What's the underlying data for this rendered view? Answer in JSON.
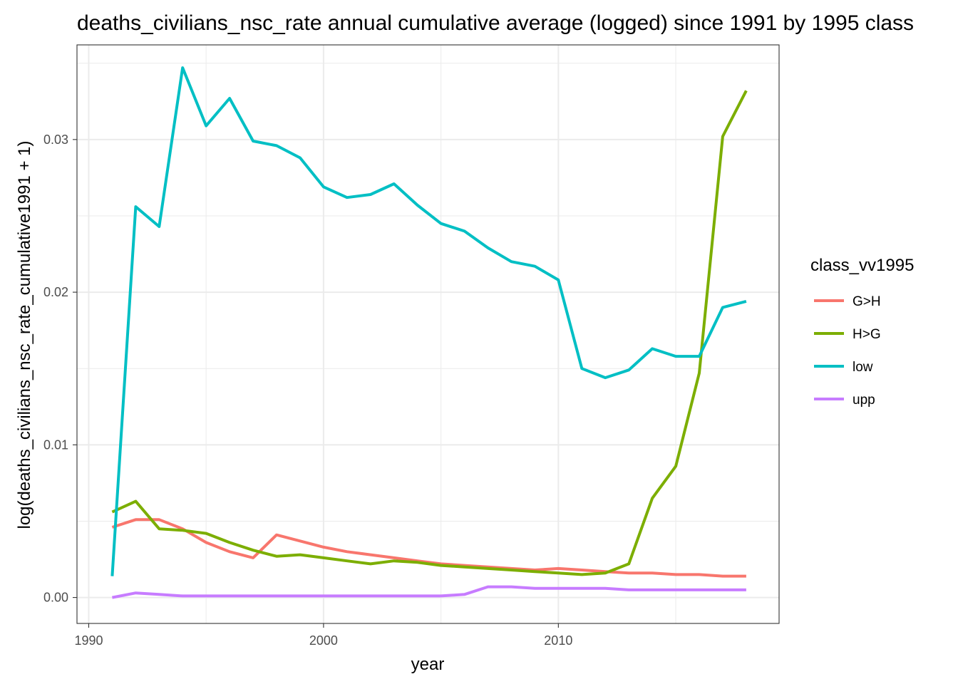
{
  "chart_data": {
    "type": "line",
    "title": "deaths_civilians_nsc_rate annual cumulative average (logged) since 1991 by 1995 class",
    "xlabel": "year",
    "ylabel": "log(deaths_civilians_nsc_rate_cumulative1991 + 1)",
    "xlim": [
      1989.5,
      2019.4
    ],
    "ylim": [
      -0.0017,
      0.0362
    ],
    "x_ticks": [
      1990,
      2000,
      2010
    ],
    "x_tick_labels": [
      "1990",
      "2000",
      "2010"
    ],
    "y_ticks": [
      0.0,
      0.01,
      0.02,
      0.03
    ],
    "y_tick_labels": [
      "0.00",
      "0.01",
      "0.02",
      "0.03"
    ],
    "grid": true,
    "legend": {
      "title": "class_vv1995",
      "position": "right"
    },
    "x": [
      1991,
      1992,
      1993,
      1994,
      1995,
      1996,
      1997,
      1998,
      1999,
      2000,
      2001,
      2002,
      2003,
      2004,
      2005,
      2006,
      2007,
      2008,
      2009,
      2010,
      2011,
      2012,
      2013,
      2014,
      2015,
      2016,
      2017,
      2018
    ],
    "series": [
      {
        "name": "G>H",
        "color": "#F8766D",
        "values": [
          0.0046,
          0.0051,
          0.0051,
          0.0045,
          0.0036,
          0.003,
          0.0026,
          0.0041,
          0.0037,
          0.0033,
          0.003,
          0.0028,
          0.0026,
          0.0024,
          0.0022,
          0.0021,
          0.002,
          0.0019,
          0.0018,
          0.0019,
          0.0018,
          0.0017,
          0.0016,
          0.0016,
          0.0015,
          0.0015,
          0.0014,
          0.0014
        ]
      },
      {
        "name": "H>G",
        "color": "#7CAE00",
        "values": [
          0.0056,
          0.0063,
          0.0045,
          0.0044,
          0.0042,
          0.0036,
          0.0031,
          0.0027,
          0.0028,
          0.0026,
          0.0024,
          0.0022,
          0.0024,
          0.0023,
          0.0021,
          0.002,
          0.0019,
          0.0018,
          0.0017,
          0.0016,
          0.0015,
          0.0016,
          0.0022,
          0.0065,
          0.0086,
          0.0147,
          0.0302,
          0.0332
        ]
      },
      {
        "name": "low",
        "color": "#00BFC4",
        "values": [
          0.0014,
          0.0256,
          0.0243,
          0.0347,
          0.0309,
          0.0327,
          0.0299,
          0.0296,
          0.0288,
          0.0269,
          0.0262,
          0.0264,
          0.0271,
          0.0257,
          0.0245,
          0.024,
          0.0229,
          0.022,
          0.0217,
          0.0208,
          0.015,
          0.0144,
          0.0149,
          0.0163,
          0.0158,
          0.0158,
          0.019,
          0.0194
        ]
      },
      {
        "name": "upp",
        "color": "#C77CFF",
        "values": [
          0.0,
          0.0003,
          0.0002,
          0.0001,
          0.0001,
          0.0001,
          0.0001,
          0.0001,
          0.0001,
          0.0001,
          0.0001,
          0.0001,
          0.0001,
          0.0001,
          0.0001,
          0.0002,
          0.0007,
          0.0007,
          0.0006,
          0.0006,
          0.0006,
          0.0006,
          0.0005,
          0.0005,
          0.0005,
          0.0005,
          0.0005,
          0.0005
        ]
      }
    ]
  }
}
